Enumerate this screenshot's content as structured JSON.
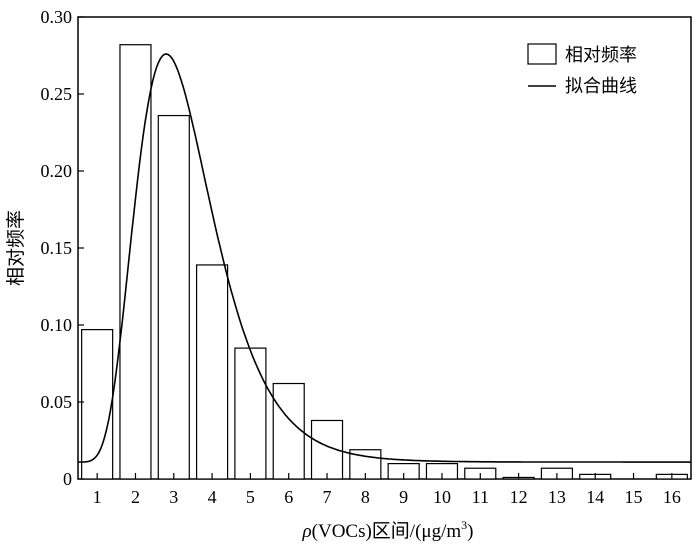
{
  "chart_data": {
    "type": "bar",
    "categories": [
      "1",
      "2",
      "3",
      "4",
      "5",
      "6",
      "7",
      "8",
      "9",
      "10",
      "11",
      "12",
      "13",
      "14",
      "15",
      "16"
    ],
    "series": [
      {
        "name": "相对频率",
        "values": [
          0.097,
          0.282,
          0.236,
          0.139,
          0.085,
          0.062,
          0.038,
          0.019,
          0.01,
          0.01,
          0.007,
          0.001,
          0.007,
          0.003,
          0.0,
          0.003
        ]
      }
    ],
    "fit": {
      "name": "拟合曲线",
      "peak_x": 2.8,
      "peak_y": 0.276,
      "baseline_y": 0.011
    },
    "xlabel_prefix": "ρ",
    "xlabel_main": "(VOCs)区间/(μg/m",
    "xlabel_sup": "3",
    "xlabel_suffix": ")",
    "ylabel": "相对频率",
    "xlim": [
      0.5,
      16.5
    ],
    "ylim": [
      0,
      0.3
    ],
    "y_ticks": [
      "0",
      "0.05",
      "0.10",
      "0.15",
      "0.20",
      "0.25",
      "0.30"
    ],
    "legend_position": "top-right",
    "grid": false,
    "colors": {
      "bar_fill": "#ffffff",
      "bar_stroke": "#000000",
      "curve": "#000000"
    }
  }
}
